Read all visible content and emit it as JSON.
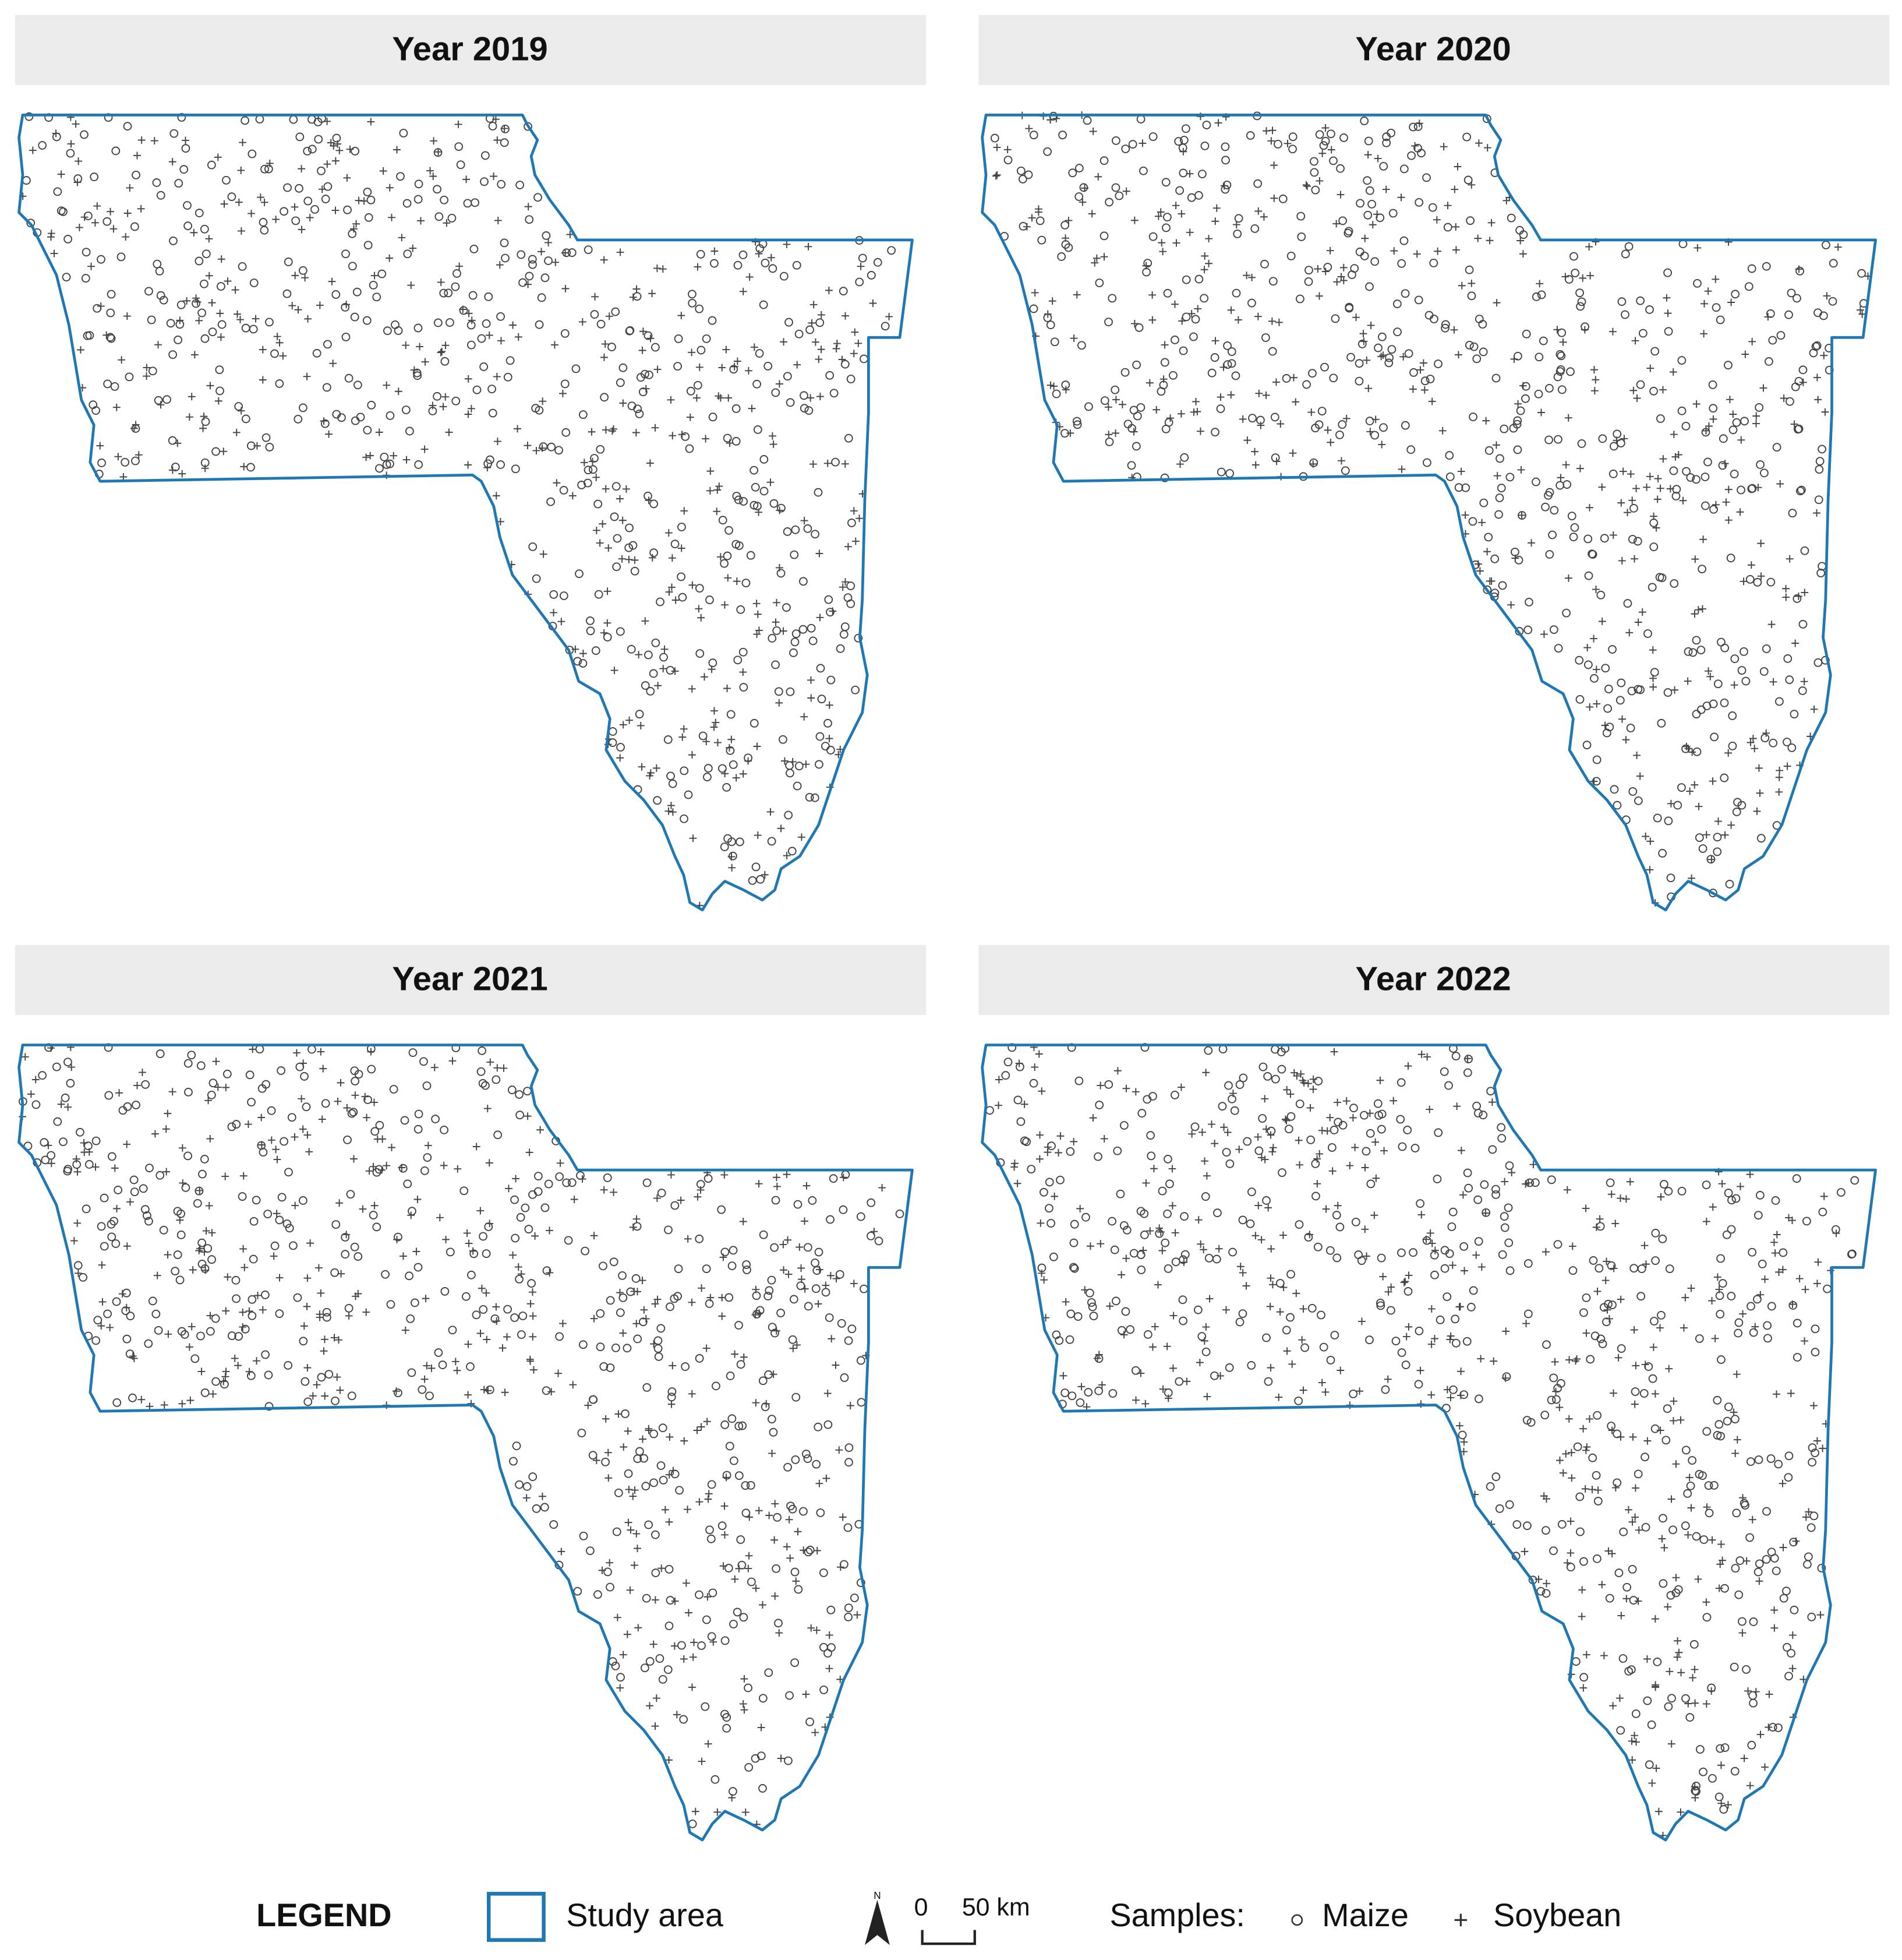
{
  "panels": [
    {
      "title": "Year 2019"
    },
    {
      "title": "Year 2020"
    },
    {
      "title": "Year 2021"
    },
    {
      "title": "Year 2022"
    }
  ],
  "legend": {
    "title": "LEGEND",
    "study_area": "Study area",
    "north": "N",
    "scale_start": "0",
    "scale_end": "50 km",
    "samples": "Samples:",
    "maize": "Maize",
    "soybean": "Soybean"
  }
}
